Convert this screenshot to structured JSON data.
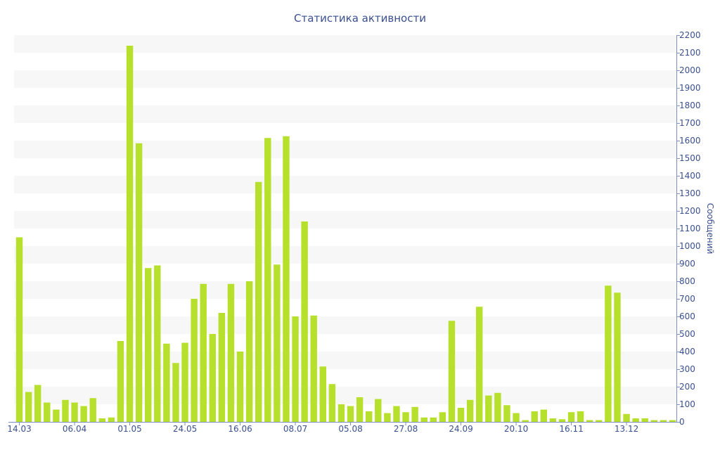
{
  "chart_data": {
    "type": "bar",
    "title": "Статистика активности",
    "xlabel": "",
    "ylabel": "Сообщений",
    "ylim": [
      0,
      2200
    ],
    "y_ticks": [
      0,
      100,
      200,
      300,
      400,
      500,
      600,
      700,
      800,
      900,
      1000,
      1100,
      1200,
      1300,
      1400,
      1500,
      1600,
      1700,
      1800,
      1900,
      2000,
      2100,
      2200
    ],
    "y_axis_position": "right",
    "grid": "alternating horizontal bands",
    "x_tick_labels": [
      {
        "index": 0,
        "label": "14.03"
      },
      {
        "index": 6,
        "label": "06.04"
      },
      {
        "index": 12,
        "label": "01.05"
      },
      {
        "index": 18,
        "label": "24.05"
      },
      {
        "index": 24,
        "label": "16.06"
      },
      {
        "index": 30,
        "label": "08.07"
      },
      {
        "index": 36,
        "label": "05.08"
      },
      {
        "index": 42,
        "label": "27.08"
      },
      {
        "index": 48,
        "label": "24.09"
      },
      {
        "index": 54,
        "label": "20.10"
      },
      {
        "index": 60,
        "label": "16.11"
      },
      {
        "index": 66,
        "label": "13.12"
      }
    ],
    "values": [
      1050,
      170,
      210,
      110,
      70,
      125,
      110,
      90,
      135,
      20,
      25,
      460,
      2140,
      1585,
      875,
      890,
      445,
      335,
      450,
      700,
      785,
      500,
      620,
      785,
      400,
      800,
      1365,
      1615,
      895,
      1625,
      600,
      1140,
      605,
      315,
      215,
      100,
      90,
      140,
      60,
      130,
      50,
      90,
      55,
      85,
      25,
      25,
      55,
      575,
      80,
      125,
      655,
      150,
      165,
      95,
      50,
      10,
      60,
      70,
      20,
      15,
      55,
      60,
      10,
      10,
      775,
      735,
      45,
      20,
      20,
      10,
      10,
      10
    ],
    "bar_color": "#b6e02c",
    "band_color": "#f7f7f7",
    "text_color": "#3a4f8f",
    "axis_color": "#7c8fc0"
  }
}
